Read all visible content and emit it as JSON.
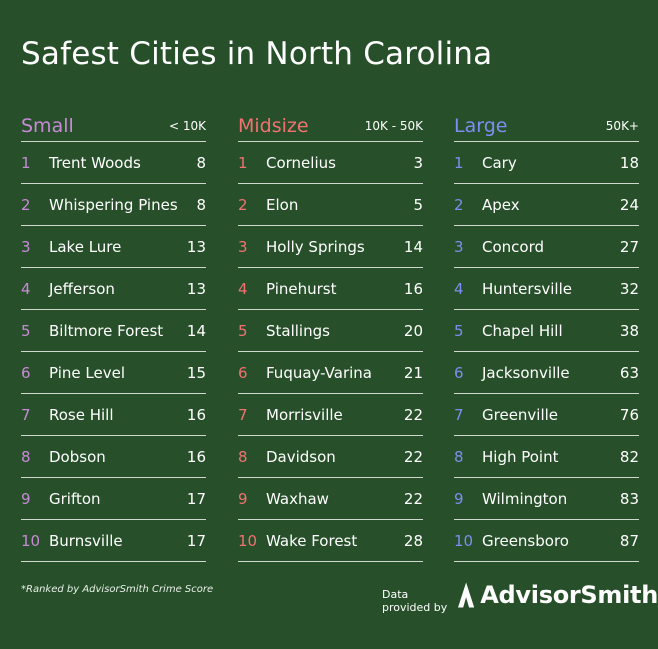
{
  "title": "Safest Cities in North Carolina",
  "columns": [
    {
      "name": "Small",
      "range": "< 10K",
      "accent": "#c889d6",
      "rows": [
        {
          "rank": "1",
          "city": "Trent Woods",
          "score": "8"
        },
        {
          "rank": "2",
          "city": "Whispering Pines",
          "score": "8"
        },
        {
          "rank": "3",
          "city": "Lake Lure",
          "score": "13"
        },
        {
          "rank": "4",
          "city": "Jefferson",
          "score": "13"
        },
        {
          "rank": "5",
          "city": "Biltmore Forest",
          "score": "14"
        },
        {
          "rank": "6",
          "city": "Pine Level",
          "score": "15"
        },
        {
          "rank": "7",
          "city": "Rose Hill",
          "score": "16"
        },
        {
          "rank": "8",
          "city": "Dobson",
          "score": "16"
        },
        {
          "rank": "9",
          "city": "Grifton",
          "score": "17"
        },
        {
          "rank": "10",
          "city": "Burnsville",
          "score": "17"
        }
      ]
    },
    {
      "name": "Midsize",
      "range": "10K - 50K",
      "accent": "#f27171",
      "rows": [
        {
          "rank": "1",
          "city": "Cornelius",
          "score": "3"
        },
        {
          "rank": "2",
          "city": "Elon",
          "score": "5"
        },
        {
          "rank": "3",
          "city": "Holly Springs",
          "score": "14"
        },
        {
          "rank": "4",
          "city": "Pinehurst",
          "score": "16"
        },
        {
          "rank": "5",
          "city": "Stallings",
          "score": "20"
        },
        {
          "rank": "6",
          "city": "Fuquay-Varina",
          "score": "21"
        },
        {
          "rank": "7",
          "city": "Morrisville",
          "score": "22"
        },
        {
          "rank": "8",
          "city": "Davidson",
          "score": "22"
        },
        {
          "rank": "9",
          "city": "Waxhaw",
          "score": "22"
        },
        {
          "rank": "10",
          "city": "Wake Forest",
          "score": "28"
        }
      ]
    },
    {
      "name": "Large",
      "range": "50K+",
      "accent": "#7b8ff2",
      "rows": [
        {
          "rank": "1",
          "city": "Cary",
          "score": "18"
        },
        {
          "rank": "2",
          "city": "Apex",
          "score": "24"
        },
        {
          "rank": "3",
          "city": "Concord",
          "score": "27"
        },
        {
          "rank": "4",
          "city": "Huntersville",
          "score": "32"
        },
        {
          "rank": "5",
          "city": "Chapel Hill",
          "score": "38"
        },
        {
          "rank": "6",
          "city": "Jacksonville",
          "score": "63"
        },
        {
          "rank": "7",
          "city": "Greenville",
          "score": "76"
        },
        {
          "rank": "8",
          "city": "High Point",
          "score": "82"
        },
        {
          "rank": "9",
          "city": "Wilmington",
          "score": "83"
        },
        {
          "rank": "10",
          "city": "Greensboro",
          "score": "87"
        }
      ]
    }
  ],
  "footnote": "*Ranked by AdvisorSmith Crime Score",
  "credit": {
    "text": "Data provided by",
    "brand": "AdvisorSmith",
    "logo_icon": "advisorsmith-logo-icon"
  },
  "colors": {
    "background": "#27502a",
    "divider": "#cfd8cf",
    "text": "#ffffff"
  }
}
